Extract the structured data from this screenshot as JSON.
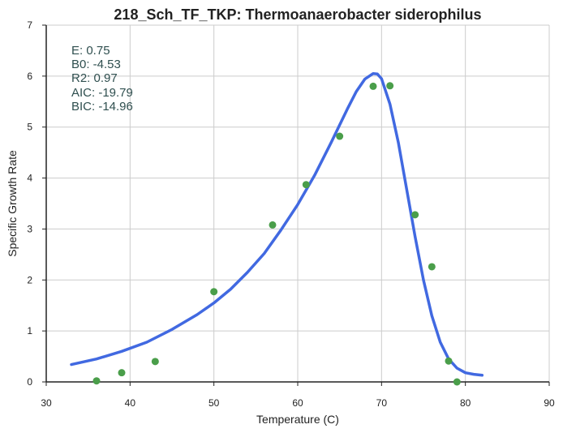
{
  "chart_data": {
    "type": "scatter",
    "title": "218_Sch_TF_TKP: Thermoanaerobacter siderophilus",
    "xlabel": "Temperature (C)",
    "ylabel": "Specific Growth Rate",
    "xlim": [
      30,
      90
    ],
    "ylim": [
      0,
      7
    ],
    "xticks": [
      30,
      40,
      50,
      60,
      70,
      80,
      90
    ],
    "yticks": [
      0,
      1,
      2,
      3,
      4,
      5,
      6,
      7
    ],
    "grid": true,
    "annotations": [
      "E:  0.75",
      "B0:  -4.53",
      "R2:  0.97",
      "AIC: -19.79",
      "BIC: -14.96"
    ],
    "series": [
      {
        "kind": "scatter",
        "color": "#4a9e4a",
        "x": [
          36,
          39,
          43,
          50,
          57,
          61,
          65,
          69,
          71,
          74,
          76,
          78,
          79
        ],
        "y": [
          0.02,
          0.18,
          0.4,
          1.77,
          3.08,
          3.87,
          4.82,
          5.8,
          5.81,
          3.28,
          2.26,
          0.41,
          0.0
        ]
      },
      {
        "kind": "line",
        "color": "#4169e1",
        "x": [
          33,
          36,
          39,
          42,
          45,
          48,
          50,
          52,
          54,
          56,
          58,
          60,
          62,
          64,
          66,
          67,
          68,
          69,
          69.5,
          70,
          71,
          72,
          73,
          74,
          75,
          76,
          77,
          78,
          79,
          80,
          81,
          82
        ],
        "y": [
          0.34,
          0.45,
          0.6,
          0.78,
          1.03,
          1.32,
          1.55,
          1.82,
          2.15,
          2.52,
          2.98,
          3.48,
          4.05,
          4.7,
          5.38,
          5.7,
          5.94,
          6.05,
          6.04,
          5.95,
          5.45,
          4.7,
          3.78,
          2.85,
          2.0,
          1.3,
          0.78,
          0.45,
          0.27,
          0.18,
          0.15,
          0.13
        ]
      }
    ]
  }
}
